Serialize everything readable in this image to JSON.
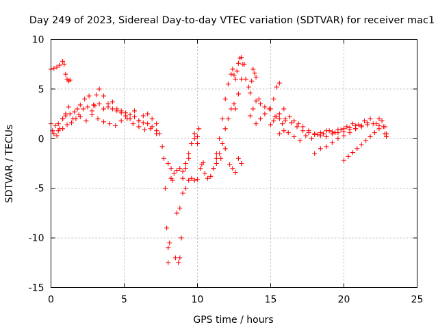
{
  "chart_data": {
    "type": "scatter",
    "title": "Day 249 of 2023, Sidereal Day-to-day VTEC variation (SDTVAR) for receiver mac1",
    "xlabel": "GPS time / hours",
    "ylabel": "SDTVAR / TECUs",
    "xlim": [
      0,
      25
    ],
    "ylim": [
      -15,
      10
    ],
    "xticks": [
      0,
      5,
      10,
      15,
      20,
      25
    ],
    "yticks": [
      -15,
      -10,
      -5,
      0,
      5,
      10
    ],
    "grid": true,
    "marker": "+",
    "color": "#ff0000",
    "series": [
      {
        "name": "SDTVAR",
        "x": [
          0.0,
          0.2,
          0.4,
          0.6,
          0.8,
          0.9,
          1.0,
          1.1,
          1.2,
          1.3,
          0.0,
          0.2,
          0.4,
          0.6,
          0.8,
          1.0,
          1.2,
          1.5,
          1.8,
          2.0,
          2.3,
          2.6,
          2.9,
          3.1,
          3.3,
          3.6,
          3.9,
          4.2,
          4.5,
          4.8,
          5.1,
          5.4,
          5.7,
          6.0,
          6.3,
          6.6,
          6.9,
          7.2,
          7.4,
          7.6,
          7.7,
          7.8,
          7.9,
          8.0,
          8.0,
          8.1,
          8.2,
          8.3,
          8.5,
          8.7,
          8.8,
          8.9,
          9.0,
          8.6,
          8.8,
          9.0,
          9.2,
          9.4,
          9.6,
          9.8,
          10.0,
          10.1,
          9.2,
          9.4,
          9.6,
          9.8,
          10.0,
          10.2,
          10.3,
          10.4,
          0.1,
          0.3,
          0.5,
          0.8,
          1.0,
          1.3,
          1.6,
          1.9,
          2.2,
          2.5,
          2.8,
          3.0,
          3.3,
          3.6,
          3.9,
          4.2,
          4.5,
          4.8,
          5.1,
          5.4,
          5.7,
          6.0,
          6.3,
          6.6,
          6.9,
          7.2,
          0.5,
          0.8,
          1.1,
          1.4,
          1.7,
          2.0,
          2.4,
          2.8,
          3.2,
          3.6,
          4.0,
          4.4,
          4.8,
          5.2,
          5.6,
          6.0,
          6.4,
          6.8,
          7.2,
          8.0,
          8.2,
          8.4,
          8.6,
          8.8,
          9.0,
          9.2,
          9.4,
          9.6,
          9.8,
          10.0,
          10.5,
          10.7,
          10.9,
          11.1,
          11.3,
          11.5,
          11.7,
          11.9,
          12.1,
          12.3,
          12.4,
          12.5,
          12.6,
          12.7,
          12.8,
          12.9,
          13.0,
          13.1,
          11.3,
          11.5,
          11.7,
          11.9,
          12.1,
          12.3,
          12.5,
          11.1,
          11.3,
          11.6,
          11.9,
          12.2,
          12.4,
          12.6,
          12.8,
          13.0,
          12.6,
          12.8,
          13.0,
          13.2,
          13.3,
          13.5,
          13.6,
          13.7,
          13.8,
          13.9,
          14.0,
          14.2,
          13.6,
          13.8,
          14.0,
          14.3,
          14.6,
          14.9,
          15.2,
          15.4,
          15.6,
          14.0,
          14.3,
          14.6,
          15.0,
          15.3,
          15.6,
          15.9,
          15.0,
          15.2,
          15.4,
          15.6,
          15.8,
          16.0,
          16.3,
          16.6,
          16.9,
          17.2,
          17.6,
          18.0,
          18.4,
          18.8,
          19.2,
          19.6,
          20.0,
          20.4,
          20.8,
          15.6,
          15.9,
          16.2,
          16.6,
          17.0,
          17.4,
          17.8,
          18.2,
          18.6,
          19.0,
          19.4,
          19.8,
          20.2,
          20.6,
          21.0,
          21.4,
          21.8,
          22.2,
          16.0,
          16.4,
          16.8,
          17.2,
          17.6,
          18.0,
          18.4,
          18.8,
          19.2,
          19.6,
          20.0,
          20.4,
          20.8,
          21.2,
          21.6,
          22.0,
          22.4,
          22.8,
          18.0,
          18.4,
          18.8,
          19.2,
          19.6,
          20.0,
          20.4,
          20.8,
          21.2,
          21.6,
          20.0,
          20.3,
          20.6,
          20.9,
          21.2,
          21.5,
          21.8,
          22.1,
          22.4,
          22.7,
          22.9,
          22.4,
          22.6,
          22.8,
          22.9
        ],
        "y": [
          7.0,
          7.1,
          7.2,
          7.4,
          7.8,
          7.5,
          6.5,
          6.0,
          5.8,
          5.9,
          1.5,
          0.5,
          0.3,
          1.0,
          2.0,
          2.5,
          3.2,
          2.0,
          3.0,
          3.4,
          4.0,
          4.3,
          3.4,
          4.4,
          5.0,
          4.3,
          3.5,
          3.7,
          3.0,
          2.8,
          2.6,
          2.4,
          2.8,
          1.8,
          2.3,
          2.5,
          2.0,
          1.5,
          0.5,
          -0.8,
          -2.0,
          -5.0,
          -9.0,
          -11.0,
          -12.5,
          -10.5,
          -4.0,
          -4.2,
          -12.0,
          -12.5,
          -12.0,
          -10.0,
          -4.0,
          -7.5,
          -7.0,
          -5.5,
          -3.0,
          -2.0,
          -0.5,
          0.5,
          -0.5,
          1.0,
          -5.0,
          -4.2,
          -4.0,
          -4.2,
          -4.1,
          -3.0,
          -2.6,
          -2.4,
          0.8,
          1.3,
          1.5,
          2.0,
          2.3,
          2.5,
          2.7,
          2.4,
          3.0,
          3.2,
          2.8,
          3.3,
          3.5,
          3.0,
          3.2,
          3.0,
          2.8,
          2.6,
          2.3,
          2.0,
          2.2,
          1.8,
          1.6,
          1.5,
          1.2,
          0.8,
          0.8,
          1.0,
          1.4,
          1.6,
          2.0,
          2.2,
          1.8,
          2.4,
          2.0,
          1.7,
          1.5,
          1.3,
          1.8,
          2.0,
          1.5,
          1.2,
          0.9,
          1.0,
          0.5,
          -2.5,
          -3.0,
          -3.5,
          -3.2,
          -3.0,
          -3.3,
          -2.5,
          -1.5,
          -0.5,
          0.0,
          0.2,
          -3.5,
          -4.0,
          -3.8,
          -3.0,
          -1.5,
          0.0,
          2.0,
          4.0,
          5.5,
          6.5,
          7.0,
          6.4,
          6.0,
          6.8,
          7.6,
          8.1,
          8.2,
          7.5,
          -2.0,
          -1.5,
          -0.5,
          1.0,
          2.0,
          3.0,
          3.5,
          -3.0,
          -2.5,
          -2.0,
          -1.0,
          -2.6,
          -3.0,
          -3.4,
          -2.0,
          -2.5,
          3.0,
          4.5,
          6.0,
          7.5,
          6.0,
          5.2,
          4.6,
          5.8,
          7.0,
          6.6,
          6.2,
          4.0,
          2.3,
          3.0,
          3.8,
          3.5,
          3.2,
          3.0,
          4.0,
          5.2,
          5.6,
          1.5,
          2.0,
          2.5,
          3.0,
          2.2,
          2.5,
          3.0,
          1.4,
          1.8,
          2.2,
          2.0,
          1.5,
          2.0,
          2.2,
          1.8,
          1.5,
          1.2,
          0.8,
          0.5,
          0.6,
          0.8,
          0.7,
          0.9,
          1.0,
          1.1,
          1.3,
          0.5,
          0.8,
          0.6,
          0.2,
          -0.2,
          0.3,
          0.0,
          0.4,
          0.5,
          0.8,
          0.6,
          0.9,
          1.2,
          1.5,
          1.4,
          1.8,
          2.0,
          1.5,
          1.8,
          1.6,
          1.2,
          0.8,
          0.6,
          0.4,
          0.3,
          0.2,
          0.5,
          0.6,
          0.7,
          0.9,
          1.0,
          1.2,
          1.4,
          1.5,
          1.3,
          0.5,
          -1.5,
          -1.0,
          -0.8,
          -0.4,
          0.0,
          0.3,
          0.6,
          1.0,
          1.3,
          1.6,
          -2.2,
          -1.8,
          -1.4,
          -1.0,
          -0.6,
          -0.2,
          0.2,
          0.6,
          1.0,
          1.2,
          0.2,
          2.0,
          1.8,
          1.2,
          0.5
        ]
      }
    ]
  }
}
